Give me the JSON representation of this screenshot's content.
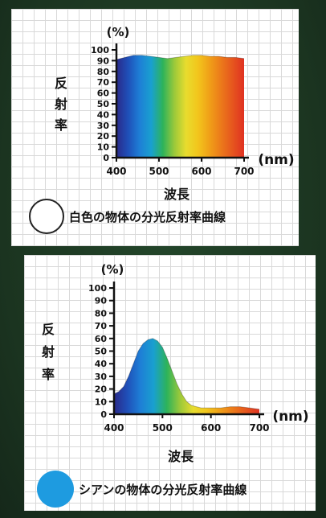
{
  "charts": [
    {
      "id": "white",
      "unit_label": "(%)",
      "ylabel_chars": [
        "反",
        "射",
        "率"
      ],
      "xlabel": "波長",
      "x_unit": "(nm)",
      "legend": "白色の物体の分光反射率曲線",
      "legend_color": "#ffffff",
      "legend_border": "#222222"
    },
    {
      "id": "cyan",
      "unit_label": "(%)",
      "ylabel_chars": [
        "反",
        "射",
        "率"
      ],
      "xlabel": "波長",
      "x_unit": "(nm)",
      "legend": "シアンの物体の分光反射率曲線",
      "legend_color": "#1e9be0",
      "legend_border": "#1e9be0"
    }
  ],
  "chart_data": [
    {
      "type": "area",
      "title": "白色の物体の分光反射率曲線",
      "xlabel": "波長 (nm)",
      "ylabel": "反射率 (%)",
      "xlim": [
        400,
        700
      ],
      "ylim": [
        0,
        100
      ],
      "x_ticks": [
        400,
        500,
        600,
        700
      ],
      "y_ticks": [
        0,
        10,
        20,
        30,
        40,
        50,
        60,
        70,
        80,
        90,
        100
      ],
      "y_tick_labels": [
        "0",
        "10",
        "20",
        "30",
        "40",
        "50",
        "60",
        "70",
        "80",
        "90",
        "100"
      ],
      "x": [
        400,
        420,
        440,
        460,
        480,
        500,
        520,
        540,
        560,
        580,
        600,
        620,
        640,
        660,
        680,
        700
      ],
      "values": [
        91,
        93,
        95,
        95,
        94,
        93,
        92,
        93,
        94,
        95,
        95,
        94,
        94,
        93,
        93,
        92
      ],
      "spectrum_colors": [
        "#2a2a8a",
        "#1f4fb8",
        "#1e7fd6",
        "#19a0cf",
        "#2db35a",
        "#9cc93a",
        "#e8dc2e",
        "#f2c61c",
        "#f0a018",
        "#ec7a1a",
        "#e6561e",
        "#e03222"
      ],
      "grid": true
    },
    {
      "type": "area",
      "title": "シアンの物体の分光反射率曲線",
      "xlabel": "波長 (nm)",
      "ylabel": "反射率 (%)",
      "xlim": [
        400,
        700
      ],
      "ylim": [
        0,
        100
      ],
      "x_ticks": [
        400,
        500,
        600,
        700
      ],
      "y_ticks": [
        0,
        10,
        20,
        30,
        40,
        50,
        60,
        70,
        80,
        90,
        100
      ],
      "y_tick_labels": [
        "0",
        "10",
        "20",
        "30",
        "40",
        "50",
        "60",
        "70",
        "80",
        "90",
        "100"
      ],
      "x": [
        400,
        410,
        420,
        430,
        440,
        450,
        460,
        470,
        480,
        490,
        500,
        510,
        520,
        530,
        540,
        550,
        560,
        570,
        580,
        600,
        620,
        640,
        660,
        680,
        700
      ],
      "values": [
        16,
        18,
        22,
        30,
        40,
        50,
        56,
        59,
        60,
        58,
        53,
        44,
        34,
        24,
        16,
        10,
        7,
        6,
        5,
        5,
        5,
        6,
        6,
        5,
        4
      ],
      "spectrum_colors": [
        "#2a2a8a",
        "#1f4fb8",
        "#1e7fd6",
        "#19a0cf",
        "#2db35a",
        "#9cc93a",
        "#e8dc2e",
        "#f2c61c",
        "#f0a018",
        "#ec7a1a",
        "#e6561e",
        "#e03222"
      ],
      "grid": true
    }
  ]
}
